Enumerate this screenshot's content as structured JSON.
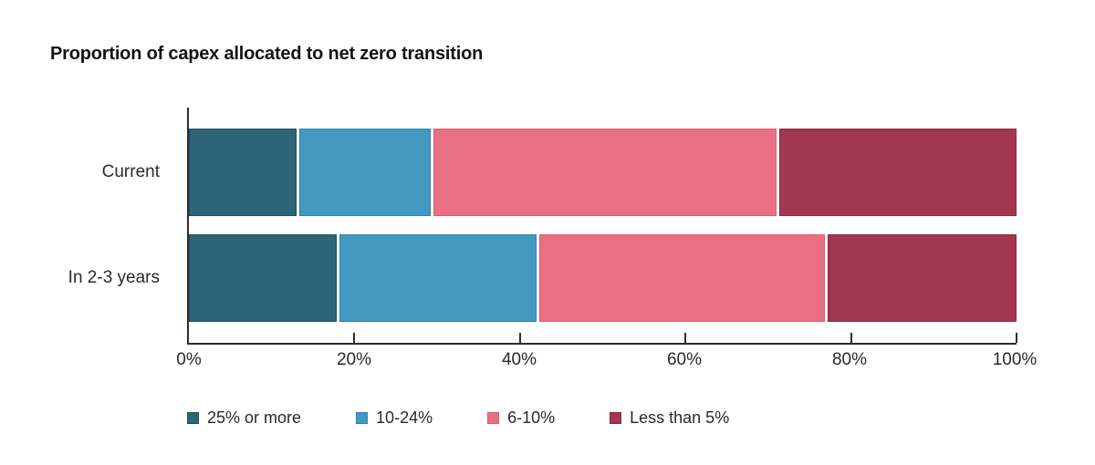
{
  "chart_data": {
    "type": "bar",
    "orientation": "horizontal-stacked",
    "title": "Proportion of capex allocated to net zero transition",
    "categories": [
      "Current",
      "In 2-3 years"
    ],
    "series": [
      {
        "name": "25% or more",
        "color": "#2d6477",
        "border": "#1e4f61",
        "values": [
          13,
          18
        ]
      },
      {
        "name": "10-24%",
        "color": "#4499bf",
        "border": "#2e84ab",
        "values": [
          16,
          24
        ]
      },
      {
        "name": "6-10%",
        "color": "#e87082",
        "border": "#d65c72",
        "values": [
          42,
          35
        ]
      },
      {
        "name": "Less than 5%",
        "color": "#a23750",
        "border": "#8b2a42",
        "values": [
          29,
          23
        ]
      }
    ],
    "x_ticks": [
      "0%",
      "20%",
      "40%",
      "60%",
      "80%",
      "100%"
    ],
    "xlim": [
      0,
      100
    ],
    "grid": false,
    "legend_position": "bottom",
    "axis_color": "#2d2d2d"
  }
}
